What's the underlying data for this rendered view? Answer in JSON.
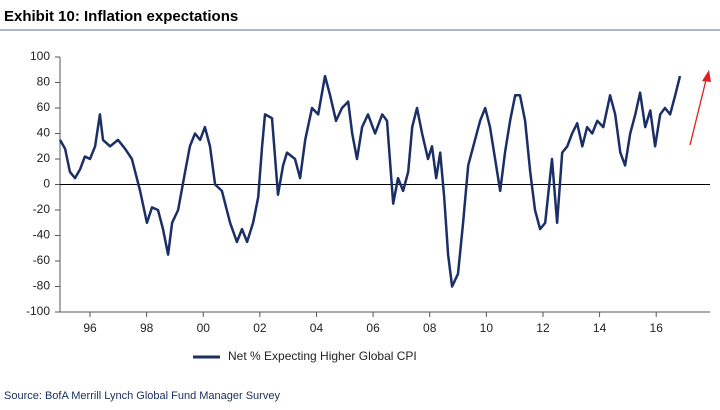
{
  "chart_data": {
    "type": "line",
    "title": "Exhibit 10: Inflation expectations",
    "source": "Source: BofA Merrill Lynch Global Fund Manager Survey",
    "x": [
      1994.94,
      1995.12,
      1995.29,
      1995.47,
      1995.65,
      1995.82,
      1996.0,
      1996.18,
      1996.35,
      1996.46,
      1996.71,
      1996.99,
      1997.24,
      1997.48,
      1997.77,
      1998.01,
      1998.19,
      1998.4,
      1998.58,
      1998.76,
      1998.9,
      1999.11,
      1999.36,
      1999.53,
      1999.71,
      1999.89,
      2000.06,
      2000.24,
      2000.42,
      2000.66,
      2000.95,
      2001.19,
      2001.37,
      2001.55,
      2001.76,
      2001.94,
      2002.08,
      2002.18,
      2002.43,
      2002.64,
      2002.82,
      2002.96,
      2003.24,
      2003.42,
      2003.6,
      2003.84,
      2004.06,
      2004.3,
      2004.48,
      2004.69,
      2004.9,
      2005.12,
      2005.26,
      2005.43,
      2005.61,
      2005.82,
      2006.07,
      2006.32,
      2006.49,
      2006.71,
      2006.88,
      2007.06,
      2007.24,
      2007.38,
      2007.55,
      2007.73,
      2007.94,
      2008.08,
      2008.23,
      2008.37,
      2008.51,
      2008.65,
      2008.79,
      2009.0,
      2009.18,
      2009.36,
      2009.6,
      2009.78,
      2009.96,
      2010.13,
      2010.31,
      2010.49,
      2010.66,
      2010.84,
      2011.02,
      2011.19,
      2011.37,
      2011.55,
      2011.72,
      2011.9,
      2012.08,
      2012.32,
      2012.5,
      2012.68,
      2012.86,
      2013.03,
      2013.21,
      2013.39,
      2013.56,
      2013.74,
      2013.92,
      2014.13,
      2014.37,
      2014.55,
      2014.73,
      2014.9,
      2015.08,
      2015.26,
      2015.43,
      2015.61,
      2015.79,
      2015.96,
      2016.14,
      2016.31,
      2016.49,
      2016.67,
      2016.84
    ],
    "series": [
      {
        "name": "Net % Expecting Higher Global CPI",
        "color": "#1b2f66",
        "values": [
          35,
          28,
          10,
          5,
          12,
          22,
          20,
          30,
          55,
          35,
          30,
          35,
          28,
          20,
          -5,
          -30,
          -18,
          -20,
          -35,
          -55,
          -30,
          -20,
          10,
          30,
          40,
          35,
          45,
          30,
          0,
          -5,
          -30,
          -45,
          -35,
          -45,
          -30,
          -10,
          30,
          55,
          52,
          -8,
          15,
          25,
          20,
          5,
          35,
          60,
          55,
          85,
          70,
          50,
          60,
          65,
          40,
          20,
          45,
          55,
          40,
          55,
          50,
          -15,
          5,
          -5,
          10,
          45,
          60,
          40,
          20,
          30,
          5,
          25,
          -10,
          -55,
          -80,
          -70,
          -30,
          15,
          35,
          50,
          60,
          45,
          20,
          -5,
          25,
          50,
          70,
          70,
          50,
          10,
          -20,
          -35,
          -30,
          20,
          -30,
          25,
          30,
          40,
          48,
          30,
          45,
          40,
          50,
          45,
          70,
          55,
          25,
          15,
          40,
          55,
          72,
          45,
          58,
          30,
          55,
          60,
          55,
          70,
          85
        ]
      }
    ],
    "xlim": [
      1994.94,
      2017.9
    ],
    "ylim": [
      -100,
      100
    ],
    "xticks": [
      {
        "value": 1996,
        "label": "96"
      },
      {
        "value": 1998,
        "label": "98"
      },
      {
        "value": 2000,
        "label": "00"
      },
      {
        "value": 2002,
        "label": "02"
      },
      {
        "value": 2004,
        "label": "04"
      },
      {
        "value": 2006,
        "label": "06"
      },
      {
        "value": 2008,
        "label": "08"
      },
      {
        "value": 2010,
        "label": "10"
      },
      {
        "value": 2012,
        "label": "12"
      },
      {
        "value": 2014,
        "label": "14"
      },
      {
        "value": 2016,
        "label": "16"
      }
    ],
    "yticks": [
      -100,
      -80,
      -60,
      -40,
      -20,
      0,
      20,
      40,
      60,
      80,
      100
    ]
  }
}
